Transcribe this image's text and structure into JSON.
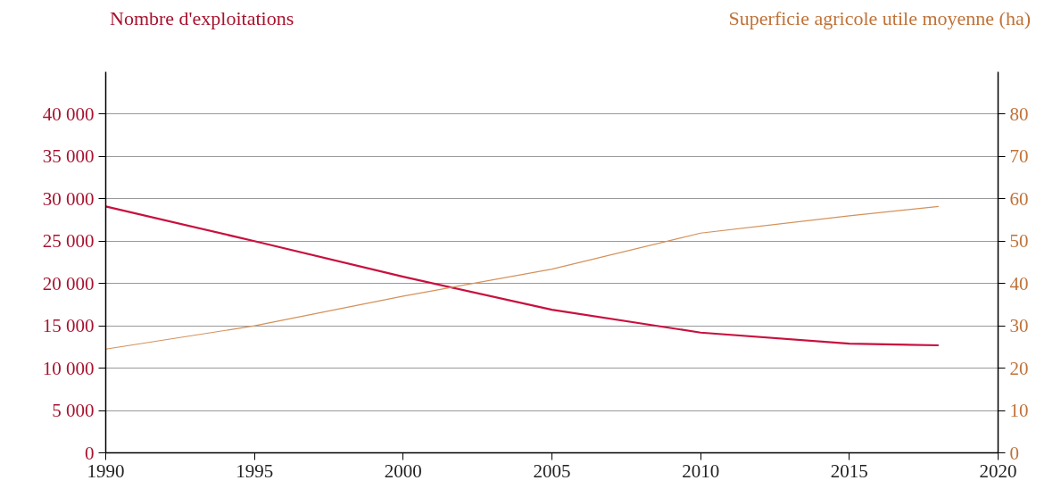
{
  "chart_data": {
    "type": "line",
    "ylabel": "Nombre d'exploitations",
    "y2label": "Superficie agricole utile moyenne (ha)",
    "x": [
      1990,
      1995,
      2000,
      2005,
      2010,
      2015,
      2018
    ],
    "series": [
      {
        "color": "#c8103e",
        "values": [
          29100,
          25000,
          20800,
          16900,
          14200,
          12900,
          12700
        ]
      },
      {
        "color": "#d4915a",
        "axis": "y2",
        "values": [
          24.5,
          30,
          37,
          43.4,
          51.9,
          56,
          58.2
        ]
      }
    ],
    "xlim": [
      1990,
      2020
    ],
    "xticks": [
      1990,
      1995,
      2000,
      2005,
      2010,
      2015,
      2020
    ],
    "ylim": [
      0,
      45000
    ],
    "yticks": [
      0,
      {
        "value": 5000,
        "label": "5 000"
      },
      {
        "value": 10000,
        "label": "10 000"
      },
      {
        "value": 15000,
        "label": "15 000"
      },
      {
        "value": 20000,
        "label": "20 000"
      },
      {
        "value": 25000,
        "label": "25 000"
      },
      {
        "value": 30000,
        "label": "30 000"
      },
      {
        "value": 35000,
        "label": "35 000"
      },
      {
        "value": 40000,
        "label": "40 000"
      }
    ],
    "y2lim": [
      0,
      90
    ],
    "y2ticks": [
      0,
      10,
      20,
      30,
      40,
      50,
      60,
      70,
      80
    ],
    "grid": "y",
    "marker": "none",
    "line_style": "solid"
  }
}
